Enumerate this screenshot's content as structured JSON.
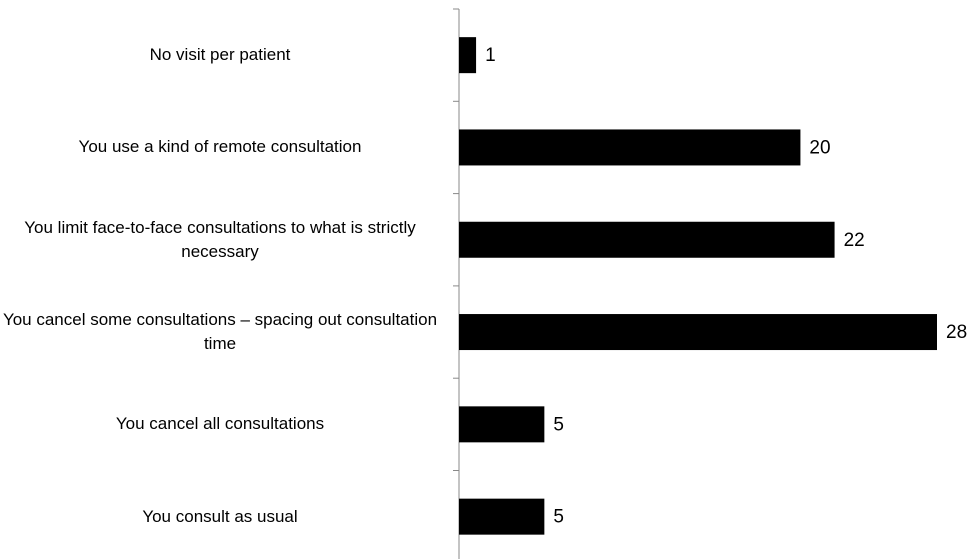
{
  "chart_data": {
    "type": "barh",
    "categories": [
      "No visit per patient",
      "You use a kind of remote consultation",
      "You limit face-to-face consultations to what is strictly necessary",
      "You cancel some consultations – spacing out consultation time",
      "You cancel all consultations",
      "You consult as usual"
    ],
    "values": [
      1,
      20,
      22,
      28,
      5,
      5
    ],
    "color": "#000000",
    "xlim": [
      0,
      28
    ]
  }
}
